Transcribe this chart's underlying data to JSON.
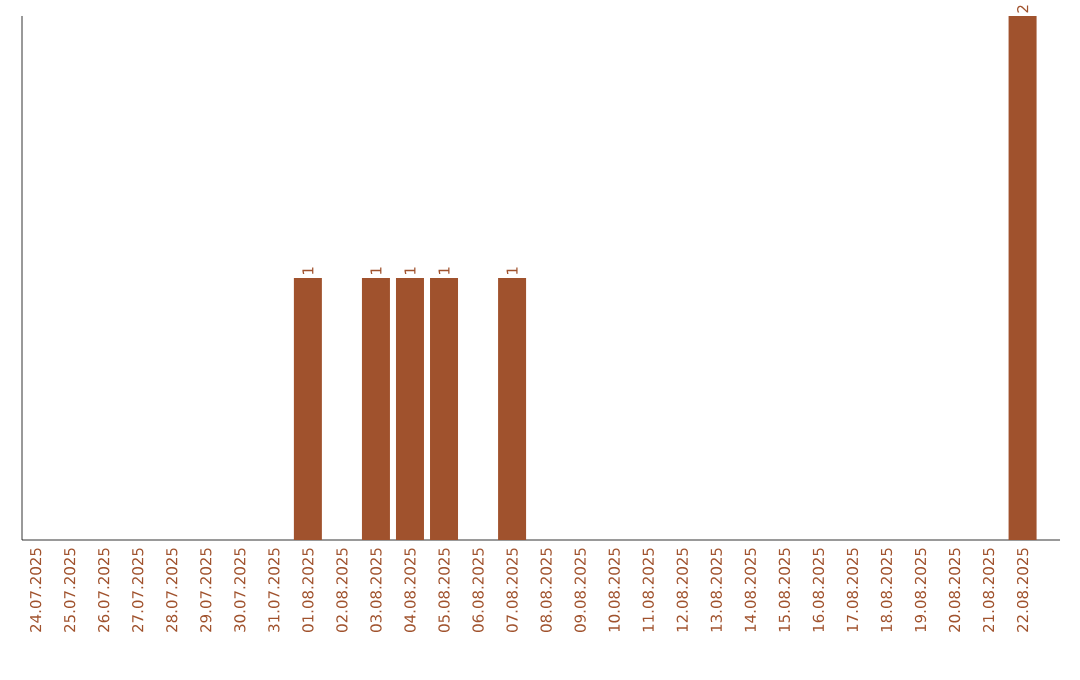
{
  "chart_data": {
    "type": "bar",
    "categories": [
      "24.07.2025",
      "25.07.2025",
      "26.07.2025",
      "27.07.2025",
      "28.07.2025",
      "29.07.2025",
      "30.07.2025",
      "31.07.2025",
      "01.08.2025",
      "02.08.2025",
      "03.08.2025",
      "04.08.2025",
      "05.08.2025",
      "06.08.2025",
      "07.08.2025",
      "08.08.2025",
      "09.08.2025",
      "10.08.2025",
      "11.08.2025",
      "12.08.2025",
      "13.08.2025",
      "14.08.2025",
      "15.08.2025",
      "16.08.2025",
      "17.08.2025",
      "18.08.2025",
      "19.08.2025",
      "20.08.2025",
      "21.08.2025",
      "22.08.2025"
    ],
    "values": [
      0,
      0,
      0,
      0,
      0,
      0,
      0,
      0,
      1,
      0,
      1,
      1,
      1,
      0,
      1,
      0,
      0,
      0,
      0,
      0,
      0,
      0,
      0,
      0,
      0,
      0,
      0,
      0,
      0,
      2
    ],
    "value_labels": [
      null,
      null,
      null,
      null,
      null,
      null,
      null,
      null,
      "1",
      null,
      "1",
      "1",
      "1",
      null,
      "1",
      null,
      null,
      null,
      null,
      null,
      null,
      null,
      null,
      null,
      null,
      null,
      null,
      null,
      null,
      "2"
    ],
    "color": "#a0522d"
  }
}
